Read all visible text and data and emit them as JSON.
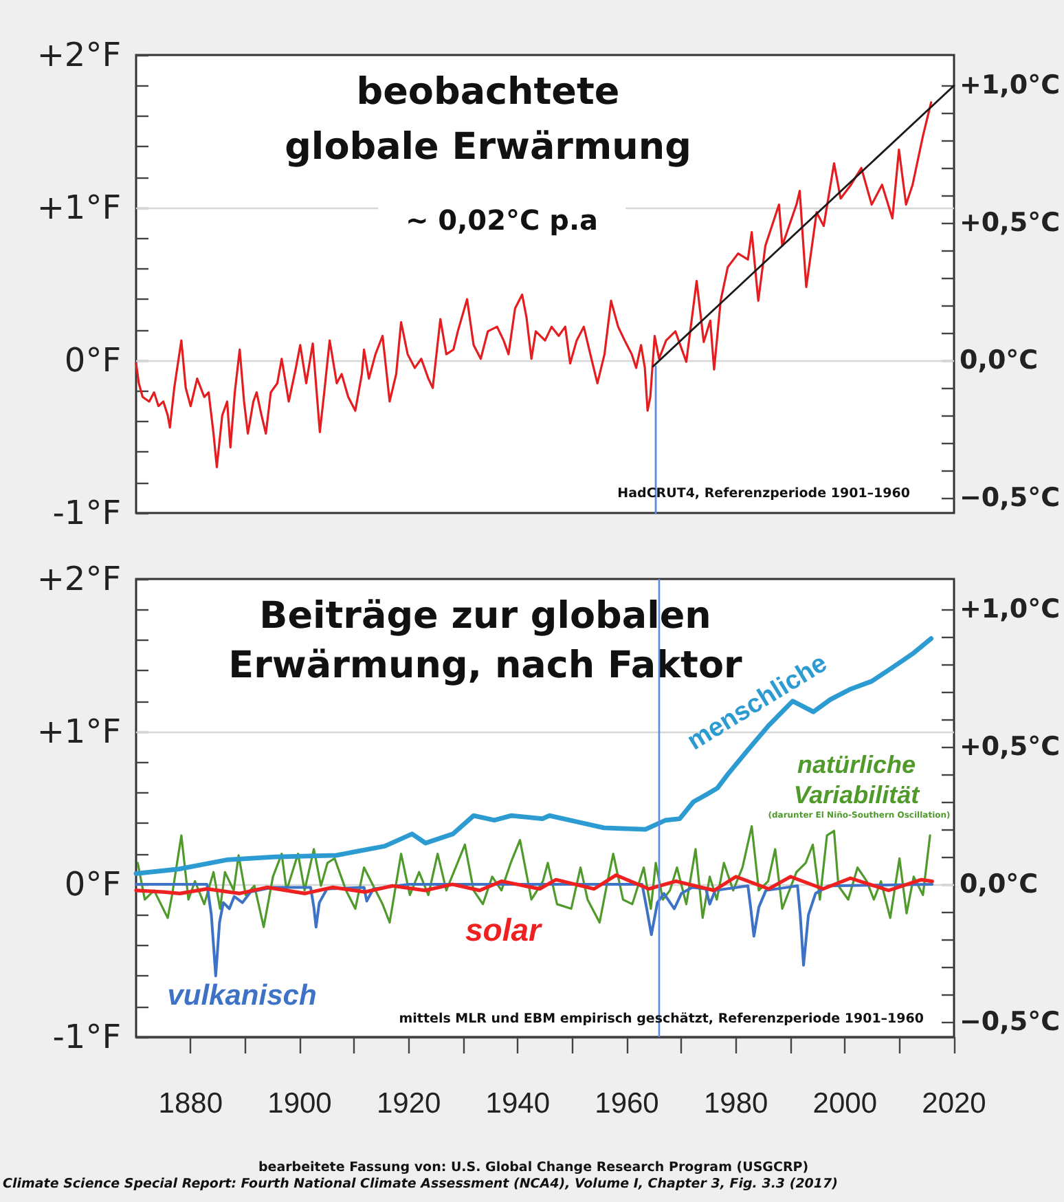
{
  "chart_data": [
    {
      "type": "line",
      "title": "beobachtete globale Erwärmung",
      "annotations": [
        "~ 0,02°C p.a",
        "HadCRUT4, Referenzperiode 1901–1960"
      ],
      "series": [
        {
          "color": "#e41e20",
          "x": [
            1870,
            1870.5,
            1871.2,
            1872.4,
            1873.3,
            1874.1,
            1875.0,
            1875.8,
            1876.2,
            1877.0,
            1878.3,
            1879.1,
            1880.0,
            1881.2,
            1882.5,
            1883.3,
            1884.2,
            1884.8,
            1885.8,
            1886.7,
            1887.3,
            1888.1,
            1889.0,
            1889.8,
            1890.5,
            1891.5,
            1892.1,
            1893.0,
            1893.8,
            1894.7,
            1895.9,
            1896.7,
            1898.0,
            1899.3,
            1900.1,
            1901.2,
            1902.4,
            1903.7,
            1904.5,
            1905.5,
            1906.8,
            1907.7,
            1908.9,
            1910.2,
            1911.4,
            1911.8,
            1912.7,
            1913.9,
            1915.2,
            1916.5,
            1917.7,
            1918.6,
            1919.8,
            1921.1,
            1922.3,
            1923.6,
            1924.4,
            1925.8,
            1926.9,
            1928.2,
            1929.0,
            1930.7,
            1931.9,
            1933.2,
            1934.5,
            1936.2,
            1937.4,
            1938.3,
            1939.5,
            1940.8,
            1941.6,
            1942.5,
            1943.3,
            1945.0,
            1946.2,
            1947.5,
            1948.7,
            1949.6,
            1950.8,
            1952.1,
            1953.3,
            1954.6,
            1955.9,
            1957.1,
            1958.4,
            1959.6,
            1960.9,
            1961.7,
            1962.6,
            1963.3,
            1963.8,
            1964.3,
            1965.1,
            1965.9,
            1967.2,
            1968.9,
            1970.9,
            1972.8,
            1974.1,
            1975.3,
            1976.0,
            1977.2,
            1978.5,
            1980.4,
            1982.2,
            1982.9,
            1984.1,
            1985.4,
            1986.6,
            1987.9,
            1988.5,
            1991.1,
            1991.7,
            1992.3,
            1992.9,
            1994.8,
            1996.1,
            1998.0,
            1999.2,
            2001.1,
            2003.0,
            2004.9,
            2006.8,
            2008.7,
            2009.9,
            2011.2,
            2012.4,
            2014.3,
            2015.8
          ],
          "values": [
            -0.02,
            -0.15,
            -0.24,
            -0.27,
            -0.21,
            -0.3,
            -0.27,
            -0.36,
            -0.44,
            -0.18,
            0.13,
            -0.18,
            -0.3,
            -0.12,
            -0.24,
            -0.21,
            -0.48,
            -0.7,
            -0.36,
            -0.27,
            -0.57,
            -0.21,
            0.07,
            -0.27,
            -0.48,
            -0.27,
            -0.21,
            -0.36,
            -0.48,
            -0.21,
            -0.15,
            0.01,
            -0.27,
            -0.05,
            0.1,
            -0.15,
            0.11,
            -0.47,
            -0.21,
            0.13,
            -0.15,
            -0.09,
            -0.24,
            -0.33,
            -0.09,
            0.07,
            -0.12,
            0.04,
            0.16,
            -0.27,
            -0.09,
            0.25,
            0.04,
            -0.05,
            0.01,
            -0.12,
            -0.18,
            0.27,
            0.04,
            0.07,
            0.19,
            0.4,
            0.1,
            0.01,
            0.19,
            0.22,
            0.13,
            0.04,
            0.34,
            0.43,
            0.28,
            0.01,
            0.19,
            0.13,
            0.22,
            0.16,
            0.22,
            -0.02,
            0.13,
            0.22,
            0.04,
            -0.15,
            0.04,
            0.39,
            0.22,
            0.13,
            0.04,
            -0.05,
            0.1,
            -0.05,
            -0.33,
            -0.24,
            0.16,
            0.01,
            0.13,
            0.19,
            -0.01,
            0.52,
            0.12,
            0.26,
            -0.06,
            0.39,
            0.61,
            0.7,
            0.66,
            0.84,
            0.39,
            0.75,
            0.88,
            1.02,
            0.75,
            1.02,
            1.11,
            0.79,
            0.48,
            0.97,
            0.88,
            1.29,
            1.06,
            1.15,
            1.26,
            1.02,
            1.15,
            0.93,
            1.38,
            1.02,
            1.15,
            1.47,
            1.69
          ]
        },
        {
          "color": "#1a1a1a",
          "x": [
            1964.8,
            2020
          ],
          "values": [
            -0.04,
            1.8
          ]
        },
        {
          "color": "#5b8ae0",
          "x": [
            1965.3,
            1965.3
          ],
          "values": [
            -1,
            -0.04
          ]
        }
      ],
      "xlim": [
        1870,
        2020
      ],
      "ylim": [
        -1,
        2
      ],
      "yticks": [
        {
          "value": -1,
          "label": "-1°F"
        },
        {
          "value": -0.8,
          "label": null
        },
        {
          "value": -0.6,
          "label": null
        },
        {
          "value": -0.4,
          "label": null
        },
        {
          "value": -0.2,
          "label": null
        },
        {
          "value": 0,
          "label": "0°F"
        },
        {
          "value": 0.2,
          "label": null
        },
        {
          "value": 0.4,
          "label": null
        },
        {
          "value": 0.6,
          "label": null
        },
        {
          "value": 0.8,
          "label": null
        },
        {
          "value": 1,
          "label": "+1°F"
        },
        {
          "value": 1.2,
          "label": null
        },
        {
          "value": 1.4,
          "label": null
        },
        {
          "value": 1.6,
          "label": null
        },
        {
          "value": 1.8,
          "label": null
        },
        {
          "value": 2,
          "label": "+2°F"
        }
      ],
      "y2lim": [
        -0.556,
        1.111
      ],
      "y2ticks": [
        {
          "value": -0.5,
          "label": "−0,5°C"
        },
        {
          "value": -0.4,
          "label": null
        },
        {
          "value": -0.3,
          "label": null
        },
        {
          "value": -0.2,
          "label": null
        },
        {
          "value": -0.1,
          "label": null
        },
        {
          "value": 0,
          "label": "0,0°C"
        },
        {
          "value": 0.1,
          "label": null
        },
        {
          "value": 0.2,
          "label": null
        },
        {
          "value": 0.3,
          "label": null
        },
        {
          "value": 0.4,
          "label": null
        },
        {
          "value": 0.5,
          "label": "+0,5°C"
        },
        {
          "value": 0.6,
          "label": null
        },
        {
          "value": 0.7,
          "label": null
        },
        {
          "value": 0.8,
          "label": null
        },
        {
          "value": 0.9,
          "label": null
        },
        {
          "value": 1,
          "label": "+1,0°C"
        }
      ],
      "ref_lines": [
        {
          "axis": "y",
          "value": 0,
          "color": "#d6d6d6"
        },
        {
          "axis": "y",
          "value": 1,
          "color": "#d6d6d6"
        }
      ],
      "tick_labels": "y"
    },
    {
      "type": "line",
      "title": "Beiträge zur globalen Erwärmung, nach Faktor",
      "annotations": [
        "(darunter El Niño-Southern Oscillation)",
        "mittels MLR und EBM empirisch geschätzt, Referenzperiode 1901–1960",
        "bearbeitete Fassung von: U.S. Global Change Research Program (USGCRP)",
        "Climate Science Special Report: Fourth National Climate Assessment (NCA4), Volume I, Chapter 3, Fig. 3.3 (2017)"
      ],
      "series": [
        {
          "name": "natürliche Variabilität",
          "color": "#4f9a2b",
          "x": [
            1870.3,
            1871.6,
            1873.3,
            1875.8,
            1876.6,
            1878.3,
            1879.6,
            1880.8,
            1882.5,
            1884.2,
            1885.4,
            1886.3,
            1887.9,
            1888.8,
            1890.1,
            1891.7,
            1893.4,
            1895.1,
            1896.7,
            1897.6,
            1899.7,
            1900.9,
            1902.6,
            1903.9,
            1905.1,
            1906.4,
            1908.5,
            1910.2,
            1911.8,
            1913.5,
            1915.2,
            1916.5,
            1918.6,
            1920.2,
            1921.9,
            1923.6,
            1925.3,
            1926.9,
            1930.3,
            1931.9,
            1933.6,
            1935.3,
            1937.0,
            1938.7,
            1940.4,
            1942.5,
            1944.6,
            1945.5,
            1947.2,
            1949.8,
            1951.5,
            1952.8,
            1955.0,
            1956.3,
            1957.5,
            1959.3,
            1961.0,
            1963.1,
            1964.4,
            1965.3,
            1966.6,
            1967.9,
            1969.2,
            1970.9,
            1972.6,
            1973.9,
            1975.2,
            1976.5,
            1977.8,
            1979.5,
            1981.2,
            1982.9,
            1984.2,
            1985.9,
            1987.2,
            1988.5,
            1989.8,
            1991.1,
            1992.8,
            1994.1,
            1995.4,
            1996.7,
            1998.0,
            1998.8,
            2000.6,
            2002.3,
            2004.0,
            2005.3,
            2006.6,
            2008.3,
            2010.0,
            2011.3,
            2012.6,
            2014.3,
            2015.6
          ],
          "values": [
            0.14,
            -0.1,
            -0.04,
            -0.22,
            -0.07,
            0.32,
            -0.1,
            0.02,
            -0.13,
            0.08,
            -0.16,
            0.08,
            -0.04,
            0.19,
            -0.07,
            -0.01,
            -0.28,
            0.05,
            0.2,
            -0.04,
            0.2,
            -0.04,
            0.23,
            -0.01,
            0.14,
            0.17,
            -0.04,
            -0.16,
            0.11,
            -0.01,
            -0.13,
            -0.25,
            0.2,
            -0.07,
            0.08,
            -0.07,
            0.2,
            -0.04,
            0.26,
            -0.04,
            -0.13,
            0.05,
            -0.04,
            0.14,
            0.29,
            -0.1,
            0.02,
            0.14,
            -0.13,
            -0.16,
            0.11,
            -0.1,
            -0.25,
            -0.01,
            0.2,
            -0.1,
            -0.13,
            0.11,
            -0.16,
            0.14,
            -0.1,
            -0.04,
            0.11,
            -0.13,
            0.23,
            -0.22,
            0.05,
            -0.1,
            0.14,
            -0.04,
            0.11,
            0.38,
            -0.04,
            0.02,
            0.23,
            -0.16,
            -0.04,
            0.08,
            0.14,
            0.26,
            -0.1,
            0.32,
            0.35,
            -0.01,
            -0.1,
            0.11,
            0.02,
            -0.1,
            0.02,
            -0.22,
            0.17,
            -0.19,
            0.05,
            -0.07,
            0.32
          ]
        },
        {
          "name": "vulkanisch",
          "color": "#3d72c6",
          "x": [
            1870,
            1883.0,
            1883.8,
            1884.6,
            1885.3,
            1886.0,
            1887.1,
            1888.0,
            1889.5,
            1891,
            1895,
            1902.0,
            1902.6,
            1903.0,
            1903.6,
            1905,
            1911.8,
            1912.3,
            1913.5,
            1920,
            1940,
            1962.8,
            1963.6,
            1964.5,
            1965.6,
            1966.8,
            1968.7,
            1970.0,
            1972,
            1974.5,
            1975.2,
            1976.2,
            1982.2,
            1982.7,
            1983.3,
            1984.2,
            1985.5,
            1991.3,
            1991.8,
            1992.4,
            1993.3,
            1994.6,
            1997,
            2016
          ],
          "values": [
            0.0,
            0.0,
            -0.2,
            -0.6,
            -0.25,
            -0.12,
            -0.16,
            -0.08,
            -0.12,
            -0.05,
            -0.02,
            -0.02,
            -0.15,
            -0.28,
            -0.12,
            -0.03,
            -0.02,
            -0.11,
            -0.03,
            0.0,
            0.0,
            0.0,
            -0.15,
            -0.33,
            -0.12,
            -0.06,
            -0.16,
            -0.06,
            -0.02,
            -0.03,
            -0.13,
            -0.04,
            -0.01,
            -0.15,
            -0.34,
            -0.15,
            -0.04,
            -0.01,
            -0.2,
            -0.53,
            -0.2,
            -0.06,
            -0.01,
            0.0
          ]
        },
        {
          "name": "solar",
          "color": "#ee2020",
          "x": [
            1870,
            1875,
            1878,
            1883,
            1889,
            1894,
            1901,
            1906,
            1912,
            1917,
            1923,
            1928,
            1933,
            1937,
            1944,
            1947,
            1954,
            1958,
            1964,
            1969,
            1976,
            1980,
            1986,
            1990,
            1996,
            2001,
            2008,
            2014,
            2016
          ],
          "values": [
            -0.04,
            -0.05,
            -0.06,
            -0.03,
            -0.06,
            -0.02,
            -0.06,
            -0.02,
            -0.05,
            -0.01,
            -0.04,
            0.0,
            -0.04,
            0.02,
            -0.03,
            0.03,
            -0.03,
            0.06,
            -0.03,
            0.02,
            -0.04,
            0.05,
            -0.03,
            0.05,
            -0.03,
            0.04,
            -0.04,
            0.03,
            0.02
          ]
        },
        {
          "name": "menschliche",
          "color": "#2b9bd1",
          "x": [
            1870,
            1877.8,
            1886.6,
            1895.4,
            1906.7,
            1915.6,
            1920.6,
            1923.1,
            1928.1,
            1931.9,
            1935.7,
            1938.8,
            1944.5,
            1945.8,
            1950.8,
            1955.8,
            1963.4,
            1967.1,
            1969.7,
            1972.2,
            1974.7,
            1976.6,
            1978.5,
            1982.2,
            1986.0,
            1990.4,
            1994.2,
            1997.3,
            2001.1,
            2004.9,
            2008.7,
            2012.4,
            2015.8
          ],
          "values": [
            0.07,
            0.1,
            0.16,
            0.18,
            0.19,
            0.25,
            0.33,
            0.27,
            0.33,
            0.45,
            0.42,
            0.45,
            0.43,
            0.45,
            0.41,
            0.37,
            0.36,
            0.42,
            0.43,
            0.54,
            0.59,
            0.63,
            0.72,
            0.88,
            1.04,
            1.2,
            1.13,
            1.21,
            1.28,
            1.33,
            1.42,
            1.51,
            1.61
          ]
        }
      ],
      "xlim": [
        1870,
        2020
      ],
      "xticks": [
        1880,
        {
          "value": 1890,
          "label": null
        },
        1900,
        {
          "value": 1910,
          "label": null
        },
        1920,
        {
          "value": 1930,
          "label": null
        },
        1940,
        {
          "value": 1950,
          "label": null
        },
        1960,
        {
          "value": 1970,
          "label": null
        },
        1980,
        {
          "value": 1990,
          "label": null
        },
        2000,
        {
          "value": 2010,
          "label": null
        },
        2020
      ],
      "ylim": [
        -1,
        2
      ],
      "yticks": [
        {
          "value": -1,
          "label": "-1°F"
        },
        {
          "value": -0.8,
          "label": null
        },
        {
          "value": -0.6,
          "label": null
        },
        {
          "value": -0.4,
          "label": null
        },
        {
          "value": -0.2,
          "label": null
        },
        {
          "value": 0,
          "label": "0°F"
        },
        {
          "value": 0.2,
          "label": null
        },
        {
          "value": 0.4,
          "label": null
        },
        {
          "value": 0.6,
          "label": null
        },
        {
          "value": 0.8,
          "label": null
        },
        {
          "value": 1,
          "label": "+1°F"
        },
        {
          "value": 1.2,
          "label": null
        },
        {
          "value": 1.4,
          "label": null
        },
        {
          "value": 1.6,
          "label": null
        },
        {
          "value": 1.8,
          "label": null
        },
        {
          "value": 2,
          "label": "+2°F"
        }
      ],
      "y2lim": [
        -0.556,
        1.111
      ],
      "y2ticks": [
        {
          "value": -0.5,
          "label": "−0,5°C"
        },
        {
          "value": -0.4,
          "label": null
        },
        {
          "value": -0.3,
          "label": null
        },
        {
          "value": -0.2,
          "label": null
        },
        {
          "value": -0.1,
          "label": null
        },
        {
          "value": 0,
          "label": "0,0°C"
        },
        {
          "value": 0.1,
          "label": null
        },
        {
          "value": 0.2,
          "label": null
        },
        {
          "value": 0.3,
          "label": null
        },
        {
          "value": 0.4,
          "label": null
        },
        {
          "value": 0.5,
          "label": "+0,5°C"
        },
        {
          "value": 0.6,
          "label": null
        },
        {
          "value": 0.7,
          "label": null
        },
        {
          "value": 0.8,
          "label": null
        },
        {
          "value": 0.9,
          "label": null
        },
        {
          "value": 1,
          "label": "+1,0°C"
        }
      ],
      "ref_lines": [
        {
          "axis": "y",
          "value": 0,
          "color": "#d6d6d6"
        },
        {
          "axis": "y",
          "value": 1,
          "color": "#d6d6d6"
        },
        {
          "axis": "x",
          "value": 1965.8,
          "color": "#5b8ae0"
        }
      ]
    }
  ]
}
